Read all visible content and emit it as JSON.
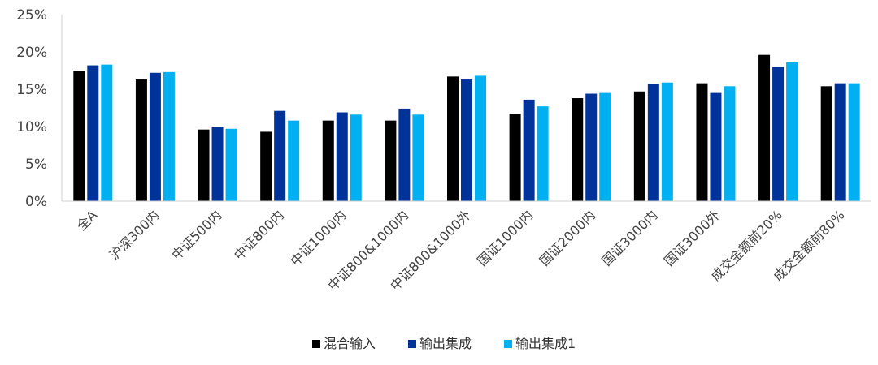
{
  "chart_data": {
    "type": "bar",
    "title": "",
    "xlabel": "",
    "ylabel": "",
    "ylim": [
      0,
      25
    ],
    "y_ticks": [
      "0%",
      "5%",
      "10%",
      "15%",
      "20%",
      "25%"
    ],
    "y_tick_values": [
      0,
      5,
      10,
      15,
      20,
      25
    ],
    "grid": false,
    "legend_position": "bottom",
    "categories": [
      "全A",
      "沪深300内",
      "中证500内",
      "中证800内",
      "中证1000内",
      "中证800&1000内",
      "中证800&1000外",
      "国证1000内",
      "国证2000内",
      "国证3000内",
      "国证3000外",
      "成交金额前20%",
      "成交金额前80%"
    ],
    "series": [
      {
        "name": "混合输入",
        "color": "#000000",
        "values": [
          17.5,
          16.3,
          9.6,
          9.3,
          10.8,
          10.8,
          16.7,
          11.7,
          13.8,
          14.7,
          15.8,
          19.6,
          15.4
        ]
      },
      {
        "name": "输出集成",
        "color": "#003399",
        "values": [
          18.2,
          17.2,
          10.0,
          12.1,
          11.9,
          12.4,
          16.3,
          13.6,
          14.4,
          15.7,
          14.5,
          18.0,
          15.8
        ]
      },
      {
        "name": "输出集成1",
        "color": "#00b0f0",
        "values": [
          18.3,
          17.3,
          9.7,
          10.8,
          11.6,
          11.6,
          16.8,
          12.7,
          14.5,
          15.9,
          15.4,
          18.6,
          15.8
        ]
      }
    ]
  }
}
